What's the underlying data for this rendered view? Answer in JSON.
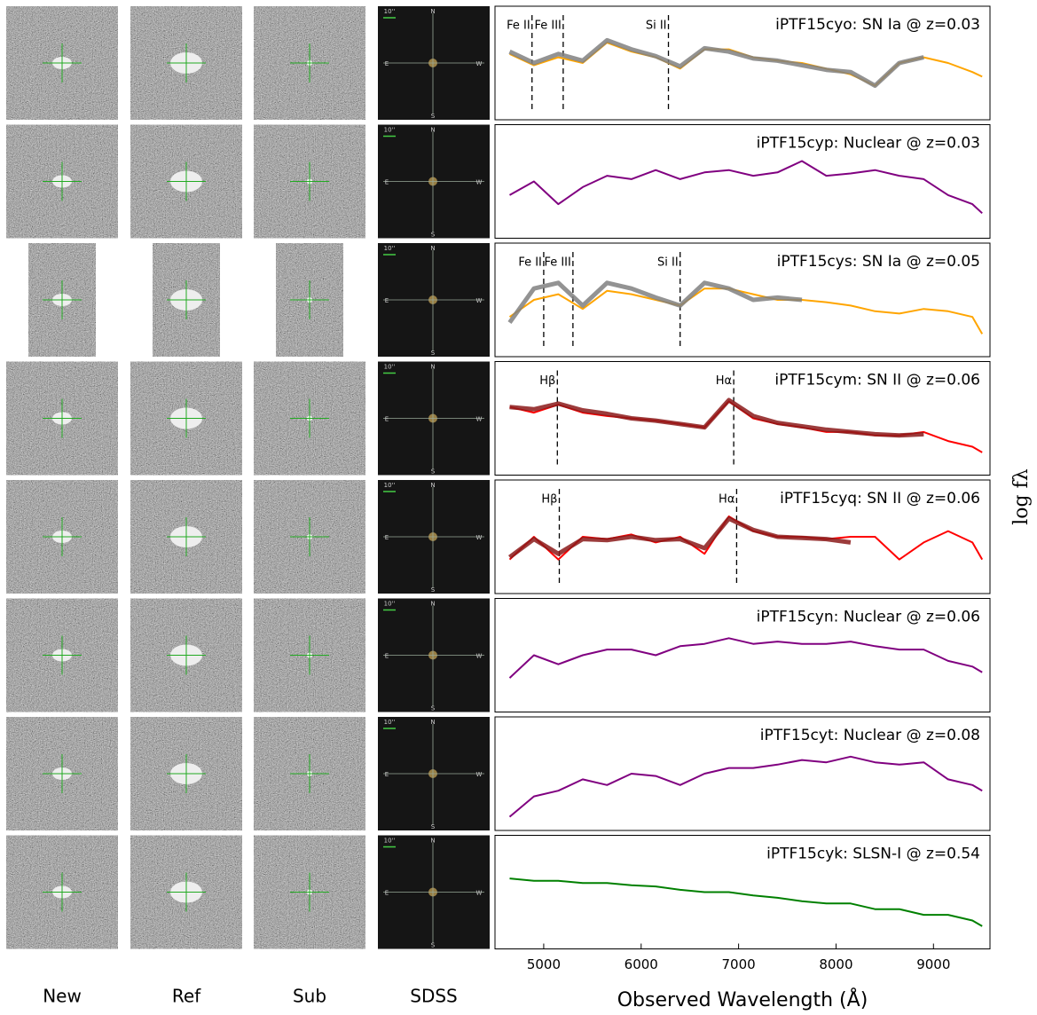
{
  "column_labels": [
    "New",
    "Ref",
    "Sub",
    "SDSS"
  ],
  "sdss_marks": {
    "north": "N",
    "south": "S",
    "east": "E",
    "west": "W",
    "scale": "10''"
  },
  "chart_data": [
    {
      "type": "line",
      "title": "iPTF15cyo: SN Ia @ z=0.03",
      "xlim": [
        4500,
        9580
      ],
      "ylim": [
        0,
        1
      ],
      "x": [
        4650,
        4900,
        5150,
        5400,
        5650,
        5900,
        6150,
        6400,
        6650,
        6900,
        7150,
        7400,
        7650,
        7900,
        8150,
        8400,
        8650,
        8900,
        9150,
        9400,
        9500
      ],
      "series": [
        {
          "color": "#ffa500",
          "values": [
            0.58,
            0.48,
            0.55,
            0.5,
            0.68,
            0.6,
            0.55,
            0.45,
            0.62,
            0.62,
            0.55,
            0.52,
            0.5,
            0.45,
            0.4,
            0.3,
            0.5,
            0.55,
            0.5,
            0.42,
            0.38
          ]
        },
        {
          "color": "#808080",
          "values": [
            0.6,
            0.5,
            0.58,
            0.52,
            0.7,
            0.62,
            0.56,
            0.47,
            0.63,
            0.6,
            0.54,
            0.52,
            0.48,
            0.44,
            0.42,
            0.3,
            0.5,
            0.55,
            null,
            null,
            null
          ]
        }
      ],
      "annotations": [
        {
          "x": 4880,
          "label": "Fe II"
        },
        {
          "x": 5200,
          "label": "Fe III"
        },
        {
          "x": 6280,
          "label": "Si II"
        }
      ]
    },
    {
      "type": "line",
      "title": "iPTF15cyp: Nuclear @ z=0.03",
      "xlim": [
        4500,
        9580
      ],
      "ylim": [
        0,
        1
      ],
      "x": [
        4650,
        4900,
        5150,
        5400,
        5650,
        5900,
        6150,
        6400,
        6650,
        6900,
        7150,
        7400,
        7650,
        7900,
        8150,
        8400,
        8650,
        8900,
        9150,
        9400,
        9500
      ],
      "series": [
        {
          "color": "#800080",
          "values": [
            0.38,
            0.5,
            0.3,
            0.45,
            0.55,
            0.52,
            0.6,
            0.52,
            0.58,
            0.6,
            0.55,
            0.58,
            0.68,
            0.55,
            0.57,
            0.6,
            0.55,
            0.52,
            0.38,
            0.3,
            0.22
          ]
        }
      ]
    },
    {
      "type": "line",
      "title": "iPTF15cys: SN Ia @ z=0.05",
      "xlim": [
        4500,
        9580
      ],
      "ylim": [
        0,
        1
      ],
      "x": [
        4650,
        4900,
        5150,
        5400,
        5650,
        5900,
        6150,
        6400,
        6650,
        6900,
        7150,
        7400,
        7650,
        7900,
        8150,
        8400,
        8650,
        8900,
        9150,
        9400,
        9500
      ],
      "series": [
        {
          "color": "#ffa500",
          "values": [
            0.35,
            0.5,
            0.55,
            0.42,
            0.58,
            0.55,
            0.5,
            0.45,
            0.6,
            0.6,
            0.55,
            0.5,
            0.5,
            0.48,
            0.45,
            0.4,
            0.38,
            0.42,
            0.4,
            0.35,
            0.2
          ]
        },
        {
          "color": "#808080",
          "values": [
            0.3,
            0.6,
            0.65,
            0.45,
            0.65,
            0.6,
            0.52,
            0.45,
            0.65,
            0.6,
            0.5,
            0.52,
            0.5,
            null,
            null,
            null,
            null,
            null,
            null,
            null,
            null
          ]
        }
      ],
      "annotations": [
        {
          "x": 5000,
          "label": "Fe II"
        },
        {
          "x": 5300,
          "label": "Fe III"
        },
        {
          "x": 6400,
          "label": "Si II"
        }
      ]
    },
    {
      "type": "line",
      "title": "iPTF15cym: SN II @ z=0.06",
      "xlim": [
        4500,
        9580
      ],
      "ylim": [
        0,
        1
      ],
      "x": [
        4650,
        4900,
        5150,
        5400,
        5650,
        5900,
        6150,
        6400,
        6650,
        6900,
        7150,
        7400,
        7650,
        7900,
        8150,
        8400,
        8650,
        8900,
        9150,
        9400,
        9500
      ],
      "series": [
        {
          "color": "#ff0000",
          "values": [
            0.6,
            0.55,
            0.62,
            0.55,
            0.52,
            0.5,
            0.48,
            0.45,
            0.42,
            0.65,
            0.5,
            0.45,
            0.42,
            0.38,
            0.38,
            0.35,
            0.35,
            0.38,
            0.3,
            0.25,
            0.2
          ]
        },
        {
          "color": "#8b1a1a",
          "values": [
            0.6,
            0.58,
            0.63,
            0.57,
            0.54,
            0.5,
            0.48,
            0.45,
            0.42,
            0.66,
            0.52,
            0.46,
            0.43,
            0.4,
            0.38,
            0.36,
            0.35,
            0.36,
            null,
            null,
            null
          ]
        }
      ],
      "annotations": [
        {
          "x": 5140,
          "label": "Hβ"
        },
        {
          "x": 6950,
          "label": "Hα"
        }
      ]
    },
    {
      "type": "line",
      "title": "iPTF15cyq: SN II @ z=0.06",
      "xlim": [
        4500,
        9580
      ],
      "ylim": [
        0,
        1
      ],
      "x": [
        4650,
        4900,
        5150,
        5400,
        5650,
        5900,
        6150,
        6400,
        6650,
        6900,
        7150,
        7400,
        7650,
        7900,
        8150,
        8400,
        8650,
        8900,
        9150,
        9400,
        9500
      ],
      "series": [
        {
          "color": "#ff0000",
          "values": [
            0.3,
            0.5,
            0.3,
            0.5,
            0.48,
            0.52,
            0.45,
            0.5,
            0.35,
            0.68,
            0.55,
            0.5,
            0.5,
            0.48,
            0.5,
            0.5,
            0.3,
            0.45,
            0.55,
            0.45,
            0.3
          ]
        },
        {
          "color": "#8b1a1a",
          "values": [
            0.32,
            0.48,
            0.35,
            0.48,
            0.47,
            0.5,
            0.47,
            0.48,
            0.4,
            0.66,
            0.56,
            0.5,
            0.49,
            0.48,
            0.45,
            null,
            null,
            null,
            null,
            null,
            null
          ]
        }
      ],
      "annotations": [
        {
          "x": 5160,
          "label": "Hβ"
        },
        {
          "x": 6980,
          "label": "Hα"
        }
      ]
    },
    {
      "type": "line",
      "title": "iPTF15cyn: Nuclear @ z=0.06",
      "xlim": [
        4500,
        9580
      ],
      "ylim": [
        0,
        1
      ],
      "x": [
        4650,
        4900,
        5150,
        5400,
        5650,
        5900,
        6150,
        6400,
        6650,
        6900,
        7150,
        7400,
        7650,
        7900,
        8150,
        8400,
        8650,
        8900,
        9150,
        9400,
        9500
      ],
      "series": [
        {
          "color": "#800080",
          "values": [
            0.3,
            0.5,
            0.42,
            0.5,
            0.55,
            0.55,
            0.5,
            0.58,
            0.6,
            0.65,
            0.6,
            0.62,
            0.6,
            0.6,
            0.62,
            0.58,
            0.55,
            0.55,
            0.45,
            0.4,
            0.35
          ]
        }
      ]
    },
    {
      "type": "line",
      "title": "iPTF15cyt: Nuclear @ z=0.08",
      "xlim": [
        4500,
        9580
      ],
      "ylim": [
        0,
        1
      ],
      "x": [
        4650,
        4900,
        5150,
        5400,
        5650,
        5900,
        6150,
        6400,
        6650,
        6900,
        7150,
        7400,
        7650,
        7900,
        8150,
        8400,
        8650,
        8900,
        9150,
        9400,
        9500
      ],
      "series": [
        {
          "color": "#800080",
          "values": [
            0.12,
            0.3,
            0.35,
            0.45,
            0.4,
            0.5,
            0.48,
            0.4,
            0.5,
            0.55,
            0.55,
            0.58,
            0.62,
            0.6,
            0.65,
            0.6,
            0.58,
            0.6,
            0.45,
            0.4,
            0.35
          ]
        }
      ]
    },
    {
      "type": "line",
      "title": "iPTF15cyk: SLSN-I @ z=0.54",
      "xlim": [
        4500,
        9580
      ],
      "ylim": [
        0,
        1
      ],
      "x": [
        4650,
        4900,
        5150,
        5400,
        5650,
        5900,
        6150,
        6400,
        6650,
        6900,
        7150,
        7400,
        7650,
        7900,
        8150,
        8400,
        8650,
        8900,
        9150,
        9400,
        9500
      ],
      "series": [
        {
          "color": "#008000",
          "values": [
            0.62,
            0.6,
            0.6,
            0.58,
            0.58,
            0.56,
            0.55,
            0.52,
            0.5,
            0.5,
            0.47,
            0.45,
            0.42,
            0.4,
            0.4,
            0.35,
            0.35,
            0.3,
            0.3,
            0.25,
            0.2
          ]
        }
      ],
      "xlabel": "Observed Wavelength (Å)",
      "ylabel": "log fλ",
      "xticks": [
        5000,
        6000,
        7000,
        8000,
        9000
      ]
    }
  ]
}
